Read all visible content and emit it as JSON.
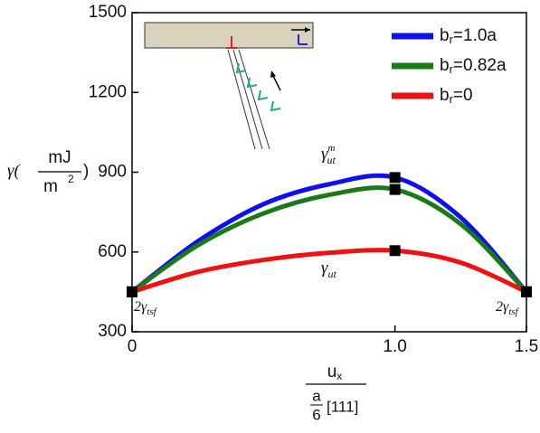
{
  "chart_data": {
    "type": "line",
    "x": [
      0,
      0.25,
      0.5,
      0.75,
      1,
      1.25,
      1.5
    ],
    "series": [
      {
        "name": {
          "text": "b",
          "sub": "r",
          "rest": "=1.0a"
        },
        "color": "#1010ee",
        "values": [
          450,
          640,
          780,
          855,
          880,
          730,
          450
        ]
      },
      {
        "name": {
          "text": "b",
          "sub": "r",
          "rest": "=0.82a"
        },
        "color": "#1a7a1a",
        "values": [
          450,
          625,
          745,
          815,
          835,
          705,
          450
        ]
      },
      {
        "name": {
          "text": "b",
          "sub": "r",
          "rest": "=0"
        },
        "color": "#ee1111",
        "values": [
          450,
          525,
          570,
          597,
          605,
          560,
          450
        ]
      }
    ],
    "xlim": [
      0,
      1.5
    ],
    "xticks": [
      0,
      {
        "value": 1,
        "label": "1.0"
      },
      1.5
    ],
    "ylim": [
      300,
      1500
    ],
    "yticks": [
      300,
      600,
      900,
      1200,
      1500
    ],
    "grid": false,
    "legend": "upper right",
    "x_label": {
      "numerator": {
        "text": "u",
        "sub": "x"
      },
      "fraction": {
        "numerator": "a",
        "denominator": "6"
      },
      "direction": "[111]"
    },
    "y_label": {
      "symbol": "γ(",
      "numerator": "mJ",
      "denominator": "m",
      "exponent": "2",
      "close": ")"
    },
    "annotations": {
      "peak_max": {
        "text": "γ",
        "sub": "ut",
        "sup": "m"
      },
      "peak": {
        "text": "γ",
        "sub": "ut"
      },
      "left_end": {
        "text": "2γ",
        "sub": "tsf"
      },
      "right_end": {
        "text": "2γ",
        "sub": "tsf"
      }
    }
  }
}
